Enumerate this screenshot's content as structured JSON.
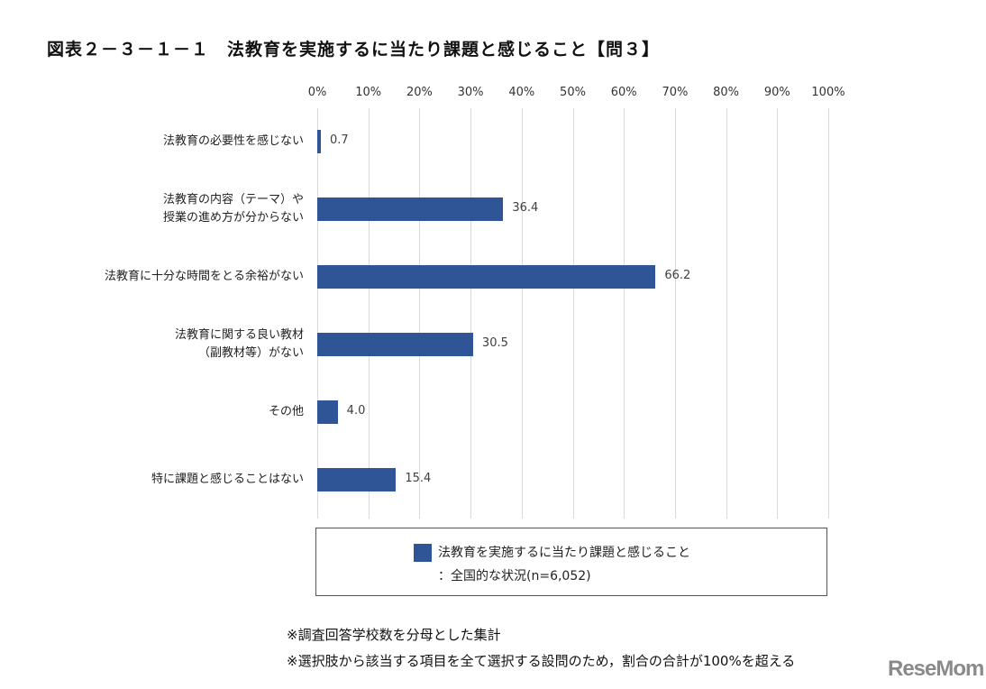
{
  "header": {
    "title": "図表２－３－１－１　法教育を実施するに当たり課題と感じること【問３】"
  },
  "chart_data": {
    "type": "bar",
    "orientation": "horizontal",
    "title": "図表２－３－１－１　法教育を実施するに当たり課題と感じること【問３】",
    "xlabel": "",
    "ylabel": "",
    "xlim": [
      0,
      100
    ],
    "x_ticks": [
      "0%",
      "10%",
      "20%",
      "30%",
      "40%",
      "50%",
      "60%",
      "70%",
      "80%",
      "90%",
      "100%"
    ],
    "grid": true,
    "categories": [
      [
        "法教育の必要性を感じない"
      ],
      [
        "法教育の内容（テーマ）や",
        "授業の進め方が分からない"
      ],
      [
        "法教育に十分な時間をとる余裕がない"
      ],
      [
        "法教育に関する良い教材",
        "（副教材等）がない"
      ],
      [
        "その他"
      ],
      [
        "特に課題と感じることはない"
      ]
    ],
    "series": [
      {
        "name": "法教育を実施するに当たり課題と感じること：全国的な状況(n=6,052)",
        "color": "#2f5597",
        "values": [
          0.7,
          36.4,
          66.2,
          30.5,
          4.0,
          15.4
        ],
        "labels": [
          "0.7",
          "36.4",
          "66.2",
          "30.5",
          "4.0",
          "15.4"
        ]
      }
    ],
    "legend_position": "bottom"
  },
  "legend": {
    "line1": "法教育を実施するに当たり課題と感じること",
    "line2": "：全国的な状況(n=6,052)",
    "swatch_color": "#2f5597"
  },
  "notes": [
    "※調査回答学校数を分母とした集計",
    "※選択肢から該当する項目を全て選択する設問のため，割合の合計が100%を超える"
  ],
  "watermark": "ReseMom"
}
